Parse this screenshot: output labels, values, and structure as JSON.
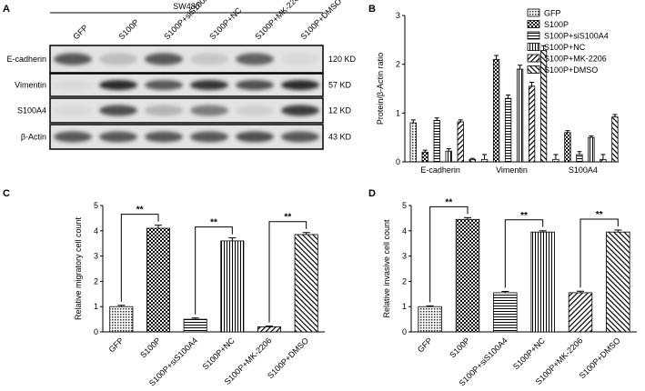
{
  "panels": {
    "a": "A",
    "b": "B",
    "c": "C",
    "d": "D"
  },
  "colors": {
    "frame": "#000000",
    "blot_bg": "#e3e3e3",
    "band": "#2a2a2a"
  },
  "blot": {
    "cell_line": "SW480",
    "lanes": [
      "GFP",
      "S100P",
      "S100P+siS100A4",
      "S100P+NC",
      "S100P+MK-2206",
      "S100P+DMSO"
    ],
    "rows": [
      {
        "name": "E-cadherin",
        "size": "120 KD",
        "intensity": [
          0.75,
          0.2,
          0.75,
          0.15,
          0.7,
          0.05
        ]
      },
      {
        "name": "Vimentin",
        "size": "57 KD",
        "intensity": [
          0.05,
          1.0,
          0.75,
          0.95,
          0.8,
          1.0
        ]
      },
      {
        "name": "S100A4",
        "size": "12 KD",
        "intensity": [
          0.05,
          0.8,
          0.25,
          0.55,
          0.1,
          0.9
        ]
      },
      {
        "name": "β-Actin",
        "size": "43 KD",
        "intensity": [
          0.75,
          0.75,
          0.75,
          0.75,
          0.8,
          0.75
        ]
      }
    ]
  },
  "chart_data": [
    {
      "type": "bar",
      "panel": "B",
      "categories": [
        "E-cadherin",
        "Vimentin",
        "S100A4"
      ],
      "series": [
        {
          "name": "GFP",
          "values": [
            0.8,
            0.05,
            0.05
          ],
          "errors": [
            0.06,
            0.1,
            0.1
          ]
        },
        {
          "name": "S100P",
          "values": [
            0.2,
            2.1,
            0.6
          ],
          "errors": [
            0.04,
            0.08,
            0.04
          ]
        },
        {
          "name": "S100P+siS100A4",
          "values": [
            0.85,
            1.3,
            0.15
          ],
          "errors": [
            0.05,
            0.07,
            0.06
          ]
        },
        {
          "name": "S100P+NC",
          "values": [
            0.22,
            1.9,
            0.5
          ],
          "errors": [
            0.05,
            0.08,
            0.03
          ]
        },
        {
          "name": "S100P+MK-2206",
          "values": [
            0.82,
            1.55,
            0.05
          ],
          "errors": [
            0.04,
            0.08,
            0.1
          ]
        },
        {
          "name": "S100P+DMSO",
          "values": [
            0.05,
            2.28,
            0.92
          ],
          "errors": [
            0.02,
            0.1,
            0.05
          ]
        }
      ],
      "xlabel": "",
      "ylabel": "Protein/β-Actin ratio",
      "ylim": [
        0,
        3
      ],
      "yticks": [
        0,
        1,
        2,
        3
      ],
      "legend": "top-right",
      "grid": false
    },
    {
      "type": "bar",
      "panel": "C",
      "categories": [
        "GFP",
        "S100P",
        "S100P+siS100A4",
        "S100P+NC",
        "S100P+MK-2206",
        "S100P+DMSO"
      ],
      "values": [
        1.0,
        4.1,
        0.5,
        3.6,
        0.2,
        3.85
      ],
      "errors": [
        0.05,
        0.12,
        0.05,
        0.12,
        0.03,
        0.08
      ],
      "ylabel": "Relative migratory cell count",
      "ylim": [
        0,
        5
      ],
      "yticks": [
        0,
        1,
        2,
        3,
        4,
        5
      ],
      "significance": [
        {
          "pair": [
            0,
            1
          ],
          "label": "**"
        },
        {
          "pair": [
            2,
            3
          ],
          "label": "**"
        },
        {
          "pair": [
            4,
            5
          ],
          "label": "**"
        }
      ]
    },
    {
      "type": "bar",
      "panel": "D",
      "categories": [
        "GFP",
        "S100P",
        "S100P+siS100A4",
        "S100P+NC",
        "S100P+MK-2206",
        "S100P+DMSO"
      ],
      "values": [
        1.0,
        4.45,
        1.55,
        3.95,
        1.55,
        3.95
      ],
      "errors": [
        0.03,
        0.07,
        0.05,
        0.05,
        0.06,
        0.08
      ],
      "ylabel": "Relative invasive cell count",
      "ylim": [
        0,
        5
      ],
      "yticks": [
        0,
        1,
        2,
        3,
        4,
        5
      ],
      "significance": [
        {
          "pair": [
            0,
            1
          ],
          "label": "**"
        },
        {
          "pair": [
            2,
            3
          ],
          "label": "**"
        },
        {
          "pair": [
            4,
            5
          ],
          "label": "**"
        }
      ]
    }
  ]
}
